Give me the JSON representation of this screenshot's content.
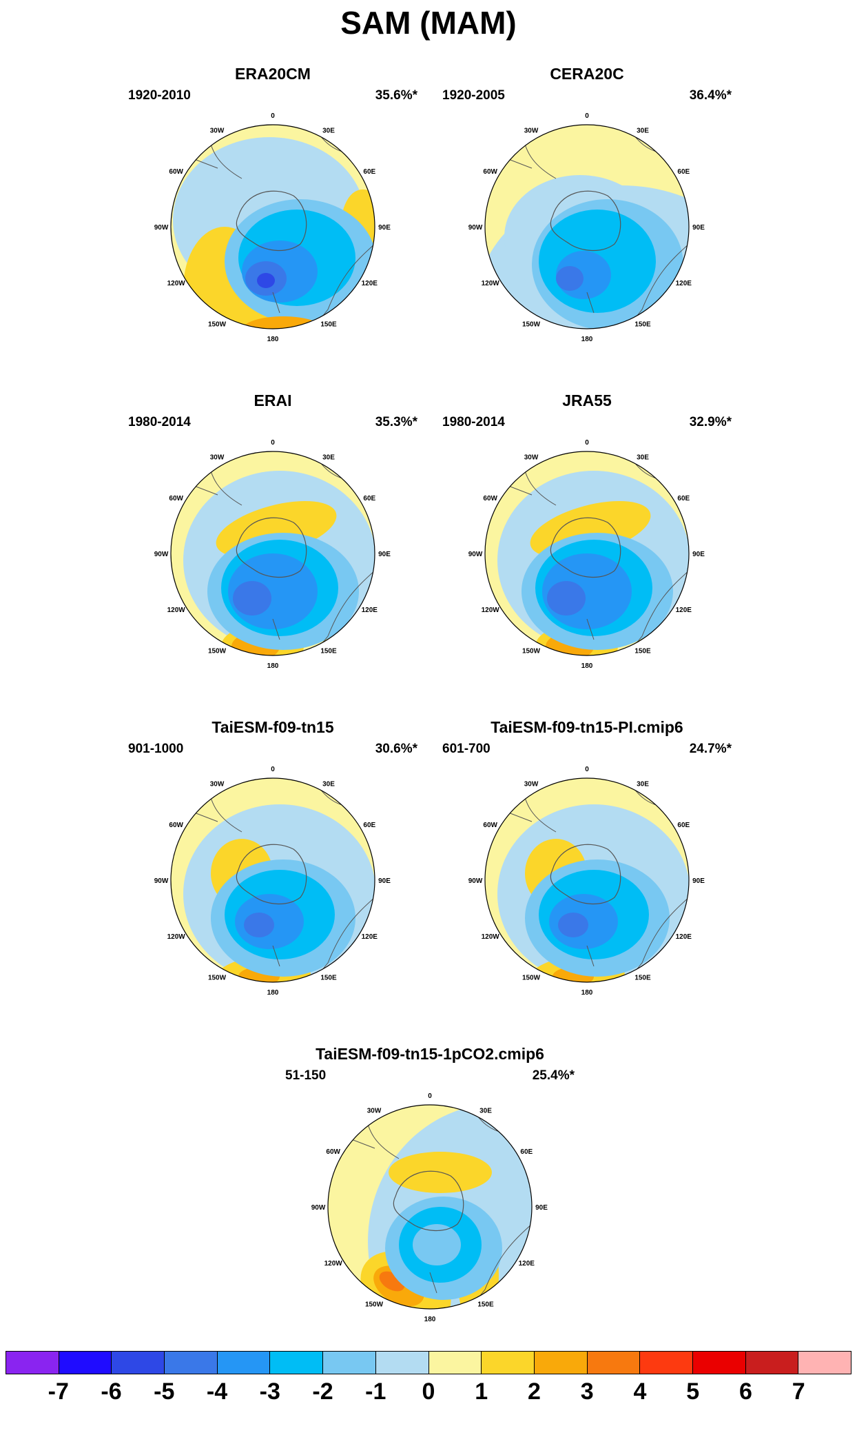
{
  "title": "SAM (MAM)",
  "panels": [
    {
      "title": "ERA20CM",
      "period": "1920-2010",
      "variance": "35.6%*"
    },
    {
      "title": "CERA20C",
      "period": "1920-2005",
      "variance": "36.4%*"
    },
    {
      "title": "ERAI",
      "period": "1980-2014",
      "variance": "35.3%*"
    },
    {
      "title": "JRA55",
      "period": "1980-2014",
      "variance": "32.9%*"
    },
    {
      "title": "TaiESM-f09-tn15",
      "period": "901-1000",
      "variance": "30.6%*"
    },
    {
      "title": "TaiESM-f09-tn15-PI.cmip6",
      "period": "601-700",
      "variance": "24.7%*"
    },
    {
      "title": "TaiESM-f09-tn15-1pCO2.cmip6",
      "period": "51-150",
      "variance": "25.4%*"
    }
  ],
  "map_labels": {
    "lon_0": "0",
    "lon_30e": "30E",
    "lon_60e": "60E",
    "lon_90e": "90E",
    "lon_120e": "120E",
    "lon_150e": "150E",
    "lon_180": "180",
    "lon_150w": "150W",
    "lon_120w": "120W",
    "lon_90w": "90W",
    "lon_60w": "60W",
    "lon_30w": "30W"
  },
  "colorbar": {
    "colors": [
      "#8a24f0",
      "#1f0cff",
      "#2e48e6",
      "#3a78e8",
      "#2596f5",
      "#00bdf5",
      "#78c8f2",
      "#b3dcf2",
      "#fbf5a0",
      "#fbd62a",
      "#f9a90a",
      "#f7790f",
      "#fd3a10",
      "#ea0000",
      "#c91e1e",
      "#ffb3b3"
    ],
    "ticks": [
      "-7",
      "-6",
      "-5",
      "-4",
      "-3",
      "-2",
      "-1",
      "0",
      "1",
      "2",
      "3",
      "4",
      "5",
      "6",
      "7"
    ]
  }
}
